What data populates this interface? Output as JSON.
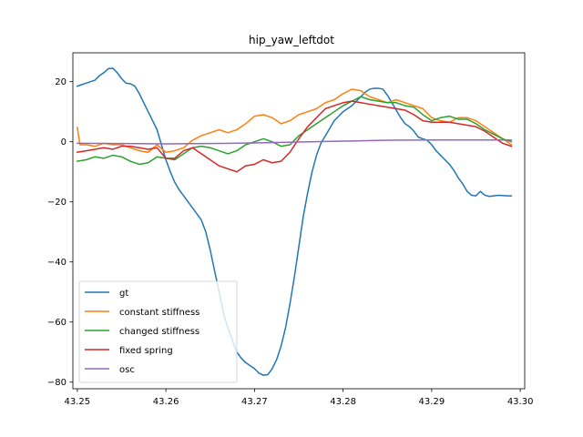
{
  "chart_data": {
    "type": "line",
    "title": "hip_yaw_leftdot",
    "xlabel": "",
    "ylabel": "",
    "xlim": [
      43.2495,
      43.3005
    ],
    "ylim": [
      -82.2,
      29.6
    ],
    "grid": false,
    "legend_position": "lower-left",
    "x_ticks": [
      43.25,
      43.26,
      43.27,
      43.28,
      43.29,
      43.3
    ],
    "x_tick_labels": [
      "43.25",
      "43.26",
      "43.27",
      "43.28",
      "43.29",
      "43.30"
    ],
    "y_ticks": [
      20,
      0,
      -20,
      -40,
      -60,
      -80
    ],
    "y_tick_labels": [
      "20",
      "0",
      "−20",
      "−40",
      "−60",
      "−80"
    ],
    "series": [
      {
        "name": "gt",
        "color": "#1f77b4",
        "x": [
          43.25,
          43.251,
          43.252,
          43.2525,
          43.253,
          43.2535,
          43.254,
          43.2545,
          43.255,
          43.2555,
          43.256,
          43.2565,
          43.257,
          43.2575,
          43.258,
          43.2585,
          43.259,
          43.2595,
          43.26,
          43.2605,
          43.261,
          43.2615,
          43.262,
          43.2625,
          43.263,
          43.2635,
          43.264,
          43.2645,
          43.265,
          43.2655,
          43.266,
          43.2665,
          43.267,
          43.2675,
          43.268,
          43.2685,
          43.269,
          43.2695,
          43.27,
          43.2705,
          43.271,
          43.2715,
          43.272,
          43.2725,
          43.273,
          43.2735,
          43.274,
          43.2745,
          43.275,
          43.2755,
          43.276,
          43.2765,
          43.277,
          43.2775,
          43.278,
          43.2785,
          43.279,
          43.2795,
          43.28,
          43.2805,
          43.281,
          43.2815,
          43.282,
          43.2825,
          43.283,
          43.2835,
          43.284,
          43.2845,
          43.285,
          43.2855,
          43.286,
          43.2865,
          43.287,
          43.2875,
          43.288,
          43.2885,
          43.289,
          43.2895,
          43.29,
          43.2905,
          43.291,
          43.2915,
          43.292,
          43.2925,
          43.293,
          43.2935,
          43.294,
          43.2945,
          43.295,
          43.2955,
          43.296,
          43.2965,
          43.297,
          43.2975,
          43.298,
          43.2985,
          43.299
        ],
        "y": [
          18.5,
          19.5,
          20.5,
          22,
          23,
          24.3,
          24.5,
          23,
          21,
          19.5,
          19.3,
          18.5,
          16,
          13,
          10,
          7,
          4,
          -1,
          -6,
          -10,
          -13.5,
          -16,
          -18,
          -20,
          -22,
          -24,
          -26,
          -30,
          -36,
          -43,
          -50,
          -57,
          -62,
          -66,
          -70,
          -72,
          -73.5,
          -74.5,
          -75.5,
          -77,
          -77.7,
          -77.5,
          -75.5,
          -72.5,
          -68,
          -62,
          -54,
          -45,
          -35,
          -25,
          -17,
          -10,
          -4.5,
          -0.5,
          2,
          4.5,
          7,
          8.5,
          10,
          11,
          12,
          13.5,
          15,
          16.5,
          17.5,
          17.8,
          17.8,
          17.5,
          15.5,
          13,
          10.5,
          8,
          6,
          5,
          3.5,
          1.5,
          1,
          0.5,
          -1,
          -3,
          -4.5,
          -6,
          -7.5,
          -9.5,
          -12,
          -14,
          -16.5,
          -17.8,
          -18,
          -16.5,
          -17.8,
          -18.2,
          -18,
          -17.8,
          -17.9,
          -18,
          -18
        ],
        "x_override_note": ""
      },
      {
        "name": "constant stiffness",
        "color": "#ff7f0e",
        "x": [
          43.25,
          43.2503,
          43.251,
          43.252,
          43.253,
          43.254,
          43.255,
          43.256,
          43.257,
          43.258,
          43.259,
          43.26,
          43.261,
          43.262,
          43.263,
          43.264,
          43.265,
          43.266,
          43.267,
          43.268,
          43.269,
          43.27,
          43.271,
          43.272,
          43.273,
          43.274,
          43.275,
          43.276,
          43.277,
          43.278,
          43.279,
          43.28,
          43.281,
          43.282,
          43.283,
          43.284,
          43.285,
          43.286,
          43.287,
          43.288,
          43.289,
          43.29,
          43.291,
          43.292,
          43.293,
          43.294,
          43.295,
          43.296,
          43.297,
          43.298,
          43.299
        ],
        "y": [
          4.8,
          -1,
          -1,
          -1.5,
          -0.5,
          -1,
          -1,
          -2,
          -3,
          -3.5,
          -1,
          -3.5,
          -3,
          -2,
          0.5,
          2,
          3,
          4,
          3,
          4,
          6,
          8.5,
          9,
          8,
          6,
          7,
          9,
          10,
          11,
          13,
          14,
          16,
          17.5,
          17,
          15,
          14,
          13,
          14,
          13,
          12,
          11,
          8,
          7,
          6.5,
          8,
          8,
          7,
          5,
          3,
          1,
          -1
        ],
        "x_override_note": ""
      },
      {
        "name": "changed stiffness",
        "color": "#2ca02c",
        "x": [
          43.25,
          43.251,
          43.252,
          43.253,
          43.254,
          43.255,
          43.256,
          43.257,
          43.258,
          43.259,
          43.26,
          43.261,
          43.262,
          43.263,
          43.264,
          43.265,
          43.266,
          43.267,
          43.268,
          43.269,
          43.27,
          43.271,
          43.272,
          43.273,
          43.274,
          43.275,
          43.276,
          43.277,
          43.278,
          43.279,
          43.28,
          43.281,
          43.282,
          43.283,
          43.284,
          43.285,
          43.286,
          43.287,
          43.288,
          43.289,
          43.29,
          43.291,
          43.292,
          43.293,
          43.294,
          43.295,
          43.296,
          43.297,
          43.298,
          43.299
        ],
        "y": [
          -6.5,
          -6,
          -5,
          -5.5,
          -4.5,
          -5,
          -6.5,
          -7.5,
          -7,
          -5,
          -5.5,
          -6,
          -4,
          -2,
          -1.5,
          -2,
          -3,
          -4,
          -3,
          -1,
          0,
          1,
          0,
          -1.5,
          -1,
          2,
          4,
          6,
          8,
          10,
          12,
          13.5,
          15,
          14,
          13.5,
          13,
          13,
          12,
          11.5,
          9,
          7,
          8,
          8.5,
          7.5,
          7.5,
          6,
          4,
          2.5,
          1,
          0
        ],
        "x_override_note": ""
      },
      {
        "name": "fixed spring",
        "color": "#d62728",
        "x": [
          43.25,
          43.251,
          43.252,
          43.253,
          43.254,
          43.255,
          43.256,
          43.257,
          43.258,
          43.259,
          43.26,
          43.261,
          43.262,
          43.263,
          43.264,
          43.265,
          43.266,
          43.267,
          43.268,
          43.269,
          43.27,
          43.271,
          43.272,
          43.273,
          43.274,
          43.275,
          43.276,
          43.277,
          43.278,
          43.279,
          43.28,
          43.281,
          43.282,
          43.283,
          43.284,
          43.285,
          43.286,
          43.287,
          43.288,
          43.289,
          43.29,
          43.291,
          43.292,
          43.293,
          43.294,
          43.295,
          43.296,
          43.297,
          43.298,
          43.299
        ],
        "y": [
          -3.5,
          -3,
          -2.5,
          -2,
          -2.5,
          -1.5,
          -1.5,
          -2,
          -2.5,
          -2,
          -5.5,
          -5.5,
          -3,
          -2,
          -4,
          -6,
          -8,
          -9,
          -10,
          -8,
          -7.5,
          -6,
          -7,
          -6.5,
          -3.5,
          1,
          5,
          8,
          11,
          12,
          13,
          13.5,
          13,
          12.5,
          12,
          11.5,
          11,
          10.5,
          9,
          7,
          6.5,
          6.5,
          6.5,
          6,
          5.5,
          5,
          3.5,
          1.5,
          -0.5,
          -1.5
        ],
        "x_override_note": ""
      },
      {
        "name": "osc",
        "color": "#9467bd",
        "x": [
          43.25,
          43.255,
          43.26,
          43.265,
          43.27,
          43.275,
          43.28,
          43.285,
          43.29,
          43.295,
          43.299
        ],
        "y": [
          -0.5,
          -0.6,
          -0.7,
          -0.6,
          -0.4,
          -0.1,
          0.2,
          0.5,
          0.6,
          0.6,
          0.6
        ],
        "x_override_note": ""
      }
    ]
  }
}
